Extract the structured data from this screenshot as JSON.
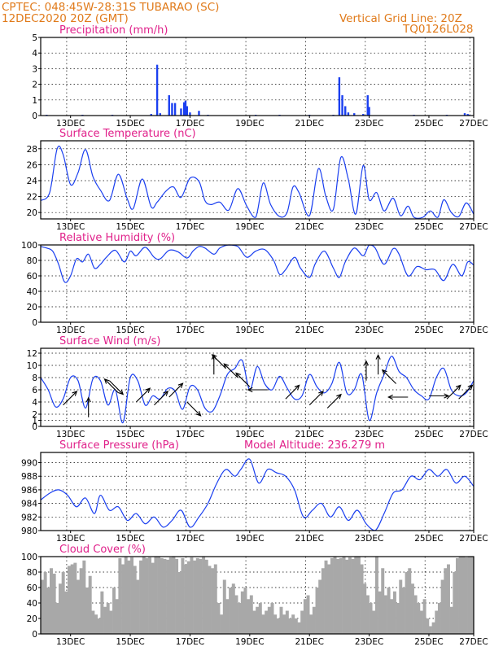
{
  "header": {
    "line1": "CPTEC:   048:45W-28:31S  TUBARAO (SC)",
    "line2": "12DEC2020 20Z (GMT)",
    "grid_note": "Vertical Grid Line: 20Z",
    "code": "TQ0126L028"
  },
  "x_ticks": [
    "13DEC",
    "15DEC",
    "17DEC",
    "19DEC",
    "21DEC",
    "23DEC",
    "25DEC",
    "27DEC"
  ],
  "chart_data": [
    {
      "type": "bar",
      "title": "Precipitation (mm/h)",
      "ylim": [
        0,
        5
      ],
      "yticks": [
        "0",
        "1",
        "2",
        "3",
        "4",
        "5"
      ],
      "xlim": [
        0,
        14.5
      ],
      "x": [
        0.2,
        1.4,
        2.4,
        3.7,
        3.9,
        4.0,
        4.3,
        4.4,
        4.5,
        4.7,
        4.8,
        4.85,
        4.9,
        5.0,
        5.3,
        5.6,
        7.2,
        8.0,
        9.0,
        9.8,
        10.0,
        10.1,
        10.2,
        10.3,
        10.5,
        10.8,
        10.95,
        11.0,
        12.5,
        13.6,
        14.2,
        14.3,
        14.35
      ],
      "values": [
        0.05,
        0.05,
        0.05,
        0.1,
        3.25,
        0.15,
        1.3,
        0.8,
        0.8,
        0.45,
        0.85,
        0.95,
        0.6,
        0.2,
        0.3,
        0.05,
        0.05,
        0.05,
        0.05,
        0.05,
        2.45,
        1.3,
        0.6,
        0.2,
        0.15,
        0.1,
        1.3,
        0.55,
        0.05,
        0.05,
        0.15,
        0.1,
        0.05
      ]
    },
    {
      "type": "line",
      "title": "Surface Temperature (nC)",
      "ylim": [
        19.2,
        29
      ],
      "yticks": [
        "20",
        "22",
        "24",
        "26",
        "28"
      ],
      "xlim": [
        0,
        14.5
      ],
      "x": [
        0,
        0.3,
        0.55,
        0.75,
        1.0,
        1.25,
        1.5,
        1.75,
        2.0,
        2.3,
        2.6,
        2.9,
        3.1,
        3.4,
        3.7,
        3.9,
        4.2,
        4.45,
        4.7,
        5.0,
        5.3,
        5.5,
        5.7,
        6.0,
        6.3,
        6.6,
        6.9,
        7.2,
        7.45,
        7.7,
        8.0,
        8.25,
        8.45,
        8.65,
        9.0,
        9.3,
        9.55,
        9.8,
        10.05,
        10.3,
        10.55,
        10.8,
        11.0,
        11.25,
        11.5,
        11.8,
        12.05,
        12.3,
        12.5,
        12.8,
        13.05,
        13.3,
        13.5,
        13.75,
        14.0,
        14.25,
        14.5
      ],
      "values": [
        21.5,
        22.5,
        28.0,
        27.3,
        23.5,
        25.0,
        27.9,
        24.5,
        22.8,
        21.5,
        24.8,
        21.7,
        20.5,
        24.2,
        20.7,
        21.3,
        22.7,
        23.2,
        21.9,
        24.3,
        23.9,
        21.5,
        21.0,
        21.3,
        20.3,
        23.0,
        20.8,
        19.4,
        23.7,
        21.0,
        19.5,
        20.0,
        23.2,
        22.5,
        19.6,
        25.5,
        22.0,
        20.4,
        26.9,
        24.2,
        19.8,
        25.9,
        21.6,
        22.5,
        20.2,
        21.8,
        19.6,
        20.8,
        19.4,
        19.4,
        20.2,
        19.4,
        21.6,
        20.0,
        19.5,
        21.2,
        19.8
      ]
    },
    {
      "type": "line",
      "title": "Relative Humidity (%)",
      "ylim": [
        0,
        100
      ],
      "yticks": [
        "0",
        "20",
        "40",
        "60",
        "80",
        "100"
      ],
      "xlim": [
        0,
        14.5
      ],
      "x": [
        0,
        0.2,
        0.4,
        0.6,
        0.8,
        1.0,
        1.2,
        1.4,
        1.6,
        1.8,
        2.0,
        2.2,
        2.5,
        2.8,
        3.0,
        3.2,
        3.5,
        3.8,
        4.0,
        4.3,
        4.6,
        4.9,
        5.1,
        5.3,
        5.5,
        5.8,
        6.0,
        6.3,
        6.6,
        6.9,
        7.2,
        7.5,
        7.8,
        8.0,
        8.2,
        8.5,
        8.7,
        9.0,
        9.2,
        9.5,
        9.8,
        10.0,
        10.2,
        10.5,
        10.8,
        11.0,
        11.2,
        11.5,
        11.8,
        12.0,
        12.3,
        12.6,
        12.9,
        13.2,
        13.5,
        13.8,
        14.1,
        14.3,
        14.5
      ],
      "values": [
        98,
        96,
        92,
        75,
        52,
        60,
        82,
        78,
        88,
        70,
        75,
        84,
        93,
        78,
        92,
        86,
        97,
        84,
        82,
        93,
        91,
        83,
        92,
        98,
        96,
        88,
        96,
        100,
        98,
        84,
        92,
        94,
        80,
        62,
        68,
        84,
        70,
        58,
        76,
        92,
        70,
        58,
        78,
        96,
        86,
        100,
        96,
        75,
        95,
        88,
        60,
        72,
        68,
        68,
        54,
        75,
        60,
        78,
        74
      ]
    },
    {
      "type": "line",
      "title": "Surface Wind (m/s)",
      "ylim": [
        0,
        12.8
      ],
      "yticks": [
        "0",
        "1",
        "2",
        "4",
        "6",
        "8",
        "10",
        "12"
      ],
      "xlim": [
        0,
        14.5
      ],
      "x": [
        0,
        0.25,
        0.5,
        0.75,
        1.0,
        1.25,
        1.5,
        1.75,
        2.0,
        2.25,
        2.5,
        2.75,
        3.0,
        3.25,
        3.5,
        3.75,
        4.0,
        4.25,
        4.5,
        4.75,
        5.0,
        5.25,
        5.5,
        5.75,
        6.0,
        6.25,
        6.5,
        6.75,
        7.0,
        7.25,
        7.5,
        7.75,
        8.0,
        8.25,
        8.5,
        8.75,
        9.0,
        9.25,
        9.5,
        9.75,
        10.0,
        10.25,
        10.5,
        10.75,
        11.0,
        11.25,
        11.5,
        11.75,
        12.0,
        12.25,
        12.5,
        12.75,
        13.0,
        13.25,
        13.5,
        13.75,
        14.0,
        14.25,
        14.5
      ],
      "values": [
        8,
        6,
        3.2,
        4.5,
        8,
        7.5,
        3,
        7.8,
        7.5,
        3.5,
        6,
        0.6,
        8,
        7.5,
        3.5,
        5,
        4.5,
        6.2,
        5.8,
        2.8,
        6.5,
        6,
        3,
        2.5,
        5,
        8.5,
        9.5,
        10.8,
        6,
        9.8,
        7,
        6,
        8.2,
        6.3,
        4.5,
        5,
        8.5,
        6.5,
        5.5,
        7,
        10.5,
        5.5,
        6,
        8.5,
        1,
        5.5,
        8.5,
        11.5,
        9,
        8,
        6,
        5,
        4.5,
        8,
        9.5,
        6,
        5,
        5.5,
        7.5
      ],
      "arrows": [
        {
          "x": 0.75,
          "speed": 3.5,
          "dir": "NE"
        },
        {
          "x": 1.6,
          "speed": 1.5,
          "dir": "N"
        },
        {
          "x": 2.3,
          "speed": 7.5,
          "dir": "SE"
        },
        {
          "x": 2.6,
          "speed": 5.5,
          "dir": "NW"
        },
        {
          "x": 3.2,
          "speed": 4.0,
          "dir": "NE"
        },
        {
          "x": 3.8,
          "speed": 3.5,
          "dir": "NE"
        },
        {
          "x": 4.3,
          "speed": 4.8,
          "dir": "NE"
        },
        {
          "x": 4.9,
          "speed": 4.0,
          "dir": "SE"
        },
        {
          "x": 5.8,
          "speed": 8.5,
          "dir": "N"
        },
        {
          "x": 6.2,
          "speed": 9.5,
          "dir": "NW"
        },
        {
          "x": 6.6,
          "speed": 8.0,
          "dir": "NW"
        },
        {
          "x": 7.0,
          "speed": 6.5,
          "dir": "NW"
        },
        {
          "x": 7.6,
          "speed": 6.0,
          "dir": "W"
        },
        {
          "x": 8.2,
          "speed": 4.5,
          "dir": "NE"
        },
        {
          "x": 9.0,
          "speed": 3.5,
          "dir": "NE"
        },
        {
          "x": 9.6,
          "speed": 3.0,
          "dir": "NE"
        },
        {
          "x": 10.9,
          "speed": 7.5,
          "dir": "N"
        },
        {
          "x": 11.3,
          "speed": 8.5,
          "dir": "N"
        },
        {
          "x": 11.9,
          "speed": 7.0,
          "dir": "NW"
        },
        {
          "x": 12.3,
          "speed": 4.8,
          "dir": "W"
        },
        {
          "x": 13.0,
          "speed": 5.0,
          "dir": "E"
        },
        {
          "x": 13.6,
          "speed": 4.5,
          "dir": "NE"
        },
        {
          "x": 14.0,
          "speed": 4.5,
          "dir": "NE"
        }
      ]
    },
    {
      "type": "line",
      "title": "Surface Pressure (hPa)",
      "subtitle": "Model Altitude: 236.279 m",
      "ylim": [
        980,
        991.5
      ],
      "yticks": [
        "980",
        "982",
        "984",
        "986",
        "988",
        "990"
      ],
      "xlim": [
        0,
        14.5
      ],
      "x": [
        0,
        0.3,
        0.6,
        0.9,
        1.2,
        1.5,
        1.8,
        2.0,
        2.3,
        2.6,
        2.9,
        3.2,
        3.5,
        3.8,
        4.1,
        4.4,
        4.7,
        5.0,
        5.3,
        5.6,
        5.9,
        6.2,
        6.5,
        6.7,
        7.0,
        7.3,
        7.6,
        7.9,
        8.2,
        8.5,
        8.8,
        9.1,
        9.4,
        9.7,
        10.0,
        10.3,
        10.6,
        10.9,
        11.2,
        11.5,
        11.8,
        12.1,
        12.4,
        12.7,
        13.0,
        13.3,
        13.6,
        13.9,
        14.2,
        14.5
      ],
      "values": [
        984.5,
        985.5,
        986,
        985.2,
        983.5,
        984.8,
        982.5,
        985.2,
        983,
        983.5,
        981.5,
        982.5,
        981,
        982,
        980.5,
        981.5,
        983,
        980.5,
        982,
        984,
        987,
        989,
        988,
        989,
        990.5,
        987,
        989,
        988.5,
        988,
        986,
        982,
        983,
        984,
        982,
        983.5,
        981.5,
        983,
        981,
        979.8,
        982.5,
        985.5,
        986,
        988,
        987.5,
        989,
        988,
        989,
        987,
        988,
        986.5
      ]
    },
    {
      "type": "area",
      "title": "Cloud Cover (%)",
      "ylim": [
        0,
        100
      ],
      "yticks": [
        "0",
        "20",
        "40",
        "60",
        "80",
        "100"
      ],
      "xlim": [
        0,
        14.5
      ],
      "x": [
        0,
        0.1,
        0.2,
        0.3,
        0.4,
        0.5,
        0.6,
        0.7,
        0.8,
        0.9,
        1.0,
        1.1,
        1.2,
        1.3,
        1.4,
        1.5,
        1.6,
        1.7,
        1.8,
        1.9,
        2.0,
        2.1,
        2.2,
        2.3,
        2.4,
        2.5,
        2.6,
        2.7,
        2.8,
        2.9,
        3.0,
        3.1,
        3.2,
        3.3,
        3.4,
        3.5,
        3.6,
        3.7,
        3.8,
        3.9,
        4.0,
        4.1,
        4.2,
        4.3,
        4.4,
        4.5,
        4.6,
        4.7,
        4.8,
        4.9,
        5.0,
        5.1,
        5.2,
        5.3,
        5.4,
        5.5,
        5.6,
        5.7,
        5.8,
        5.9,
        6.0,
        6.1,
        6.2,
        6.3,
        6.4,
        6.5,
        6.6,
        6.7,
        6.8,
        6.9,
        7.0,
        7.1,
        7.2,
        7.3,
        7.4,
        7.5,
        7.6,
        7.7,
        7.8,
        7.9,
        8.0,
        8.1,
        8.2,
        8.3,
        8.4,
        8.5,
        8.6,
        8.7,
        8.8,
        8.9,
        9.0,
        9.1,
        9.2,
        9.3,
        9.4,
        9.5,
        9.6,
        9.7,
        9.8,
        9.9,
        10.0,
        10.1,
        10.2,
        10.3,
        10.4,
        10.5,
        10.6,
        10.7,
        10.8,
        10.9,
        11.0,
        11.1,
        11.2,
        11.3,
        11.4,
        11.5,
        11.6,
        11.7,
        11.8,
        11.9,
        12.0,
        12.1,
        12.2,
        12.3,
        12.4,
        12.5,
        12.6,
        12.7,
        12.8,
        12.9,
        13.0,
        13.1,
        13.2,
        13.3,
        13.4,
        13.5,
        13.6,
        13.7,
        13.8,
        13.9,
        14.0,
        14.1,
        14.2,
        14.3,
        14.4,
        14.5
      ],
      "values": [
        70,
        80,
        60,
        85,
        78,
        40,
        65,
        80,
        55,
        88,
        90,
        92,
        70,
        85,
        95,
        60,
        75,
        30,
        25,
        20,
        55,
        35,
        40,
        30,
        60,
        45,
        98,
        90,
        100,
        95,
        99,
        88,
        70,
        95,
        100,
        98,
        99,
        92,
        100,
        100,
        98,
        97,
        96,
        99,
        100,
        97,
        80,
        98,
        90,
        94,
        99,
        95,
        98,
        97,
        100,
        96,
        88,
        85,
        90,
        40,
        25,
        70,
        45,
        60,
        65,
        50,
        40,
        55,
        60,
        45,
        50,
        30,
        35,
        40,
        25,
        30,
        35,
        40,
        25,
        20,
        35,
        25,
        30,
        20,
        25,
        20,
        15,
        30,
        45,
        50,
        25,
        35,
        60,
        70,
        85,
        95,
        90,
        98,
        100,
        97,
        98,
        100,
        96,
        99,
        97,
        100,
        100,
        90,
        65,
        50,
        40,
        30,
        100,
        55,
        85,
        50,
        60,
        45,
        55,
        40,
        70,
        60,
        80,
        85,
        65,
        50,
        40,
        30,
        45,
        20,
        10,
        15,
        30,
        40,
        70,
        85,
        90,
        35,
        80,
        98,
        100,
        100,
        99,
        100,
        100,
        100
      ]
    }
  ]
}
